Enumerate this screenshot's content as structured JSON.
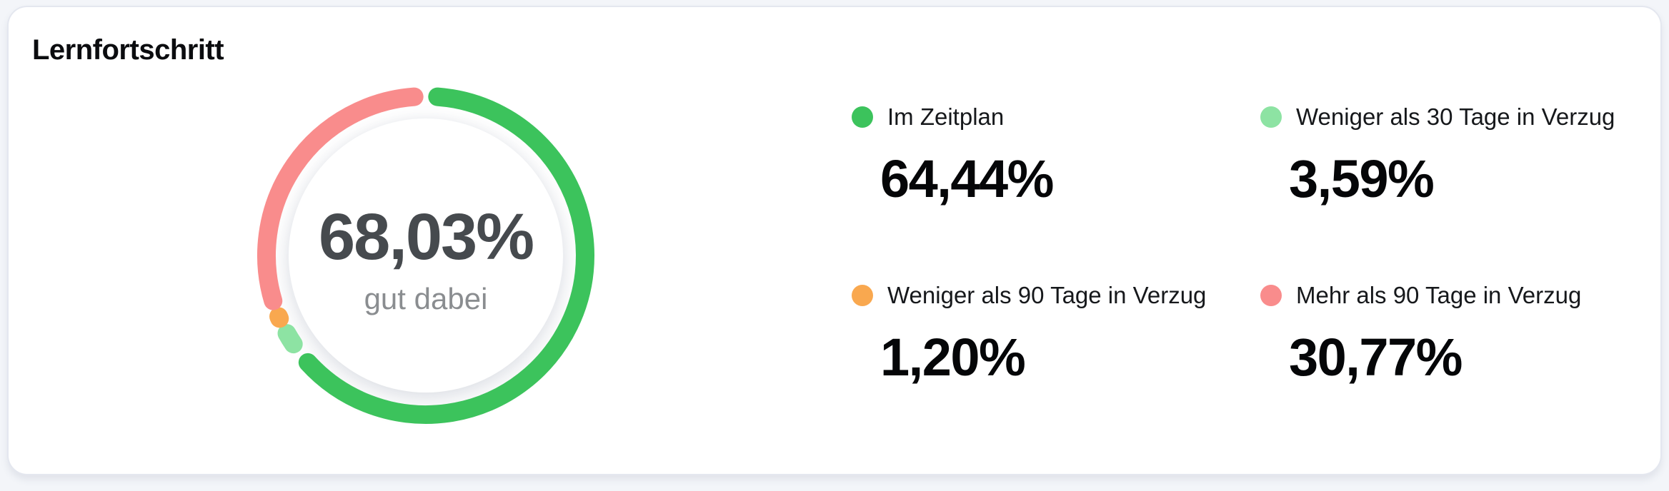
{
  "card": {
    "title": "Lernfortschritt"
  },
  "chart_data": {
    "type": "pie",
    "donut": true,
    "title": "Lernfortschritt",
    "direction": "clockwise",
    "start_angle_deg": 0,
    "legend_position": "right",
    "grid": false,
    "center": {
      "value": "68,03%",
      "caption": "gut dabei"
    },
    "segments": [
      {
        "label": "Im Zeitplan",
        "value": 64.44,
        "display": "64,44%",
        "color": "#3CC35C"
      },
      {
        "label": "Weniger als 30 Tage in Verzug",
        "value": 3.59,
        "display": "3,59%",
        "color": "#8DE3A3"
      },
      {
        "label": "Weniger als 90 Tage in Verzug",
        "value": 1.2,
        "display": "1,20%",
        "color": "#F9A84F"
      },
      {
        "label": "Mehr als 90 Tage in Verzug",
        "value": 30.77,
        "display": "30,77%",
        "color": "#F98C8C"
      }
    ]
  }
}
